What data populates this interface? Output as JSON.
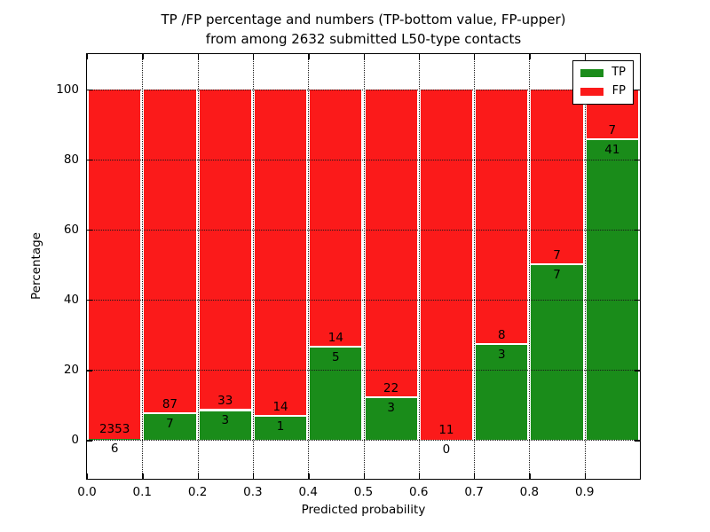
{
  "title": {
    "line1": "TP /FP percentage and numbers (TP-bottom value, FP-upper)",
    "line2": "from among 2632 submitted L50-type contacts"
  },
  "chart_data": {
    "type": "bar",
    "stacked": true,
    "title": "TP /FP percentage and numbers (TP-bottom value, FP-upper)\nfrom among 2632 submitted L50-type contacts",
    "xlabel": "Predicted probability",
    "ylabel": "Percentage",
    "xlim": [
      0.0,
      1.0
    ],
    "ylim": [
      -11,
      110
    ],
    "x_tick_values": [
      0.0,
      0.1,
      0.2,
      0.3,
      0.4,
      0.5,
      0.6,
      0.7,
      0.8,
      0.9
    ],
    "x_tick_labels": [
      "0.0",
      "0.1",
      "0.2",
      "0.3",
      "0.4",
      "0.5",
      "0.6",
      "0.7",
      "0.8",
      "0.9"
    ],
    "y_tick_values": [
      0,
      20,
      40,
      60,
      80,
      100
    ],
    "y_tick_labels": [
      "0",
      "20",
      "40",
      "60",
      "80",
      "100"
    ],
    "grid": "dotted, both axes, drawn above bars",
    "total_contacts": 2632,
    "colors": {
      "tp": "#1a8c1a",
      "fp": "#fb1a1a",
      "bar_edge": "#ffffff"
    },
    "series": [
      {
        "name": "TP",
        "color": "#1a8c1a"
      },
      {
        "name": "FP",
        "color": "#fb1a1a"
      }
    ],
    "bins": [
      {
        "x_start": 0.0,
        "x_end": 0.1,
        "tp_count": 6,
        "fp_count": 2353,
        "tp_percent": 0.25,
        "fp_percent": 99.75
      },
      {
        "x_start": 0.1,
        "x_end": 0.2,
        "tp_count": 7,
        "fp_count": 87,
        "tp_percent": 7.45,
        "fp_percent": 92.55
      },
      {
        "x_start": 0.2,
        "x_end": 0.3,
        "tp_count": 3,
        "fp_count": 33,
        "tp_percent": 8.33,
        "fp_percent": 91.67
      },
      {
        "x_start": 0.3,
        "x_end": 0.4,
        "tp_count": 1,
        "fp_count": 14,
        "tp_percent": 6.67,
        "fp_percent": 93.33
      },
      {
        "x_start": 0.4,
        "x_end": 0.5,
        "tp_count": 5,
        "fp_count": 14,
        "tp_percent": 26.32,
        "fp_percent": 73.68
      },
      {
        "x_start": 0.5,
        "x_end": 0.6,
        "tp_count": 3,
        "fp_count": 22,
        "tp_percent": 12.0,
        "fp_percent": 88.0
      },
      {
        "x_start": 0.6,
        "x_end": 0.7,
        "tp_count": 0,
        "fp_count": 11,
        "tp_percent": 0.0,
        "fp_percent": 100.0
      },
      {
        "x_start": 0.7,
        "x_end": 0.8,
        "tp_count": 3,
        "fp_count": 8,
        "tp_percent": 27.27,
        "fp_percent": 72.73
      },
      {
        "x_start": 0.8,
        "x_end": 0.9,
        "tp_count": 7,
        "fp_count": 7,
        "tp_percent": 50.0,
        "fp_percent": 50.0
      },
      {
        "x_start": 0.9,
        "x_end": 1.0,
        "tp_count": 41,
        "fp_count": 7,
        "tp_percent": 85.42,
        "fp_percent": 14.58
      }
    ],
    "legend": {
      "position": "upper right",
      "entries": [
        {
          "label": "TP",
          "color": "#1a8c1a"
        },
        {
          "label": "FP",
          "color": "#fb1a1a"
        }
      ]
    }
  }
}
